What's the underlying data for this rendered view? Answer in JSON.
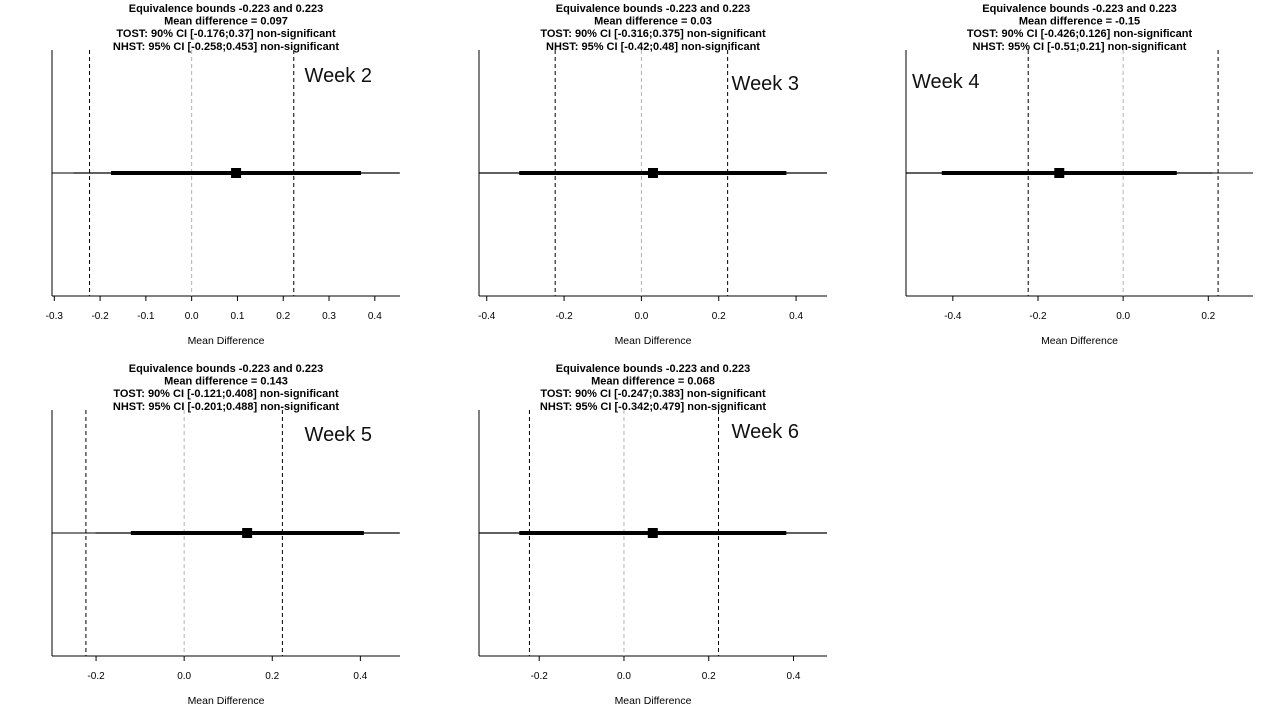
{
  "chart_data": [
    {
      "type": "scatter",
      "subtype": "forest-equivalence-test",
      "title_lines": [
        "Equivalence bounds -0.223 and 0.223",
        "Mean difference = 0.097",
        "TOST: 90% CI [-0.176;0.37] non-significant",
        "NHST: 95% CI [-0.258;0.453] non-significant"
      ],
      "panel_label": "Week 2",
      "xlabel": "Mean Difference",
      "ticks": [
        -0.3,
        -0.2,
        -0.1,
        0.0,
        0.1,
        0.2,
        0.3,
        0.4
      ],
      "tick_labels": [
        "-0.3",
        "-0.2",
        "-0.1",
        "0.0",
        "0.1",
        "0.2",
        "0.3",
        "0.4"
      ],
      "xlim": [
        -0.305,
        0.455
      ],
      "mean_difference": 0.097,
      "ci90": [
        -0.176,
        0.37
      ],
      "ci95": [
        -0.258,
        0.453
      ],
      "equivalence_bounds": [
        -0.223,
        0.223
      ],
      "label_position": "top-right"
    },
    {
      "type": "scatter",
      "subtype": "forest-equivalence-test",
      "title_lines": [
        "Equivalence bounds -0.223 and 0.223",
        "Mean difference = 0.03",
        "TOST: 90% CI [-0.316;0.375] non-significant",
        "NHST: 95% CI [-0.42;0.48] non-significant"
      ],
      "panel_label": "Week 3",
      "xlabel": "Mean Difference",
      "ticks": [
        -0.4,
        -0.2,
        0.0,
        0.2,
        0.4
      ],
      "tick_labels": [
        "-0.4",
        "-0.2",
        "0.0",
        "0.2",
        "0.4"
      ],
      "xlim": [
        -0.42,
        0.48
      ],
      "mean_difference": 0.03,
      "ci90": [
        -0.316,
        0.375
      ],
      "ci95": [
        -0.42,
        0.48
      ],
      "equivalence_bounds": [
        -0.223,
        0.223
      ],
      "label_position": "top-right"
    },
    {
      "type": "scatter",
      "subtype": "forest-equivalence-test",
      "title_lines": [
        "Equivalence bounds -0.223 and 0.223",
        "Mean difference = -0.15",
        "TOST: 90% CI [-0.426;0.126] non-significant",
        "NHST: 95% CI [-0.51;0.21] non-significant"
      ],
      "panel_label": "Week 4",
      "xlabel": "Mean Difference",
      "ticks": [
        -0.4,
        -0.2,
        0.0,
        0.2
      ],
      "tick_labels": [
        "-0.4",
        "-0.2",
        "0.0",
        "0.2"
      ],
      "xlim": [
        -0.51,
        0.305
      ],
      "mean_difference": -0.15,
      "ci90": [
        -0.426,
        0.126
      ],
      "ci95": [
        -0.51,
        0.21
      ],
      "equivalence_bounds": [
        -0.223,
        0.223
      ],
      "label_position": "top-left"
    },
    {
      "type": "scatter",
      "subtype": "forest-equivalence-test",
      "title_lines": [
        "Equivalence bounds -0.223 and 0.223",
        "Mean difference = 0.143",
        "TOST: 90% CI [-0.121;0.408] non-significant",
        "NHST: 95% CI [-0.201;0.488] non-significant"
      ],
      "panel_label": "Week 5",
      "xlabel": "Mean Difference",
      "ticks": [
        -0.2,
        0.0,
        0.2,
        0.4
      ],
      "tick_labels": [
        "-0.2",
        "0.0",
        "0.2",
        "0.4"
      ],
      "xlim": [
        -0.3,
        0.49
      ],
      "mean_difference": 0.143,
      "ci90": [
        -0.121,
        0.408
      ],
      "ci95": [
        -0.201,
        0.488
      ],
      "equivalence_bounds": [
        -0.223,
        0.223
      ],
      "label_position": "top-right"
    },
    {
      "type": "scatter",
      "subtype": "forest-equivalence-test",
      "title_lines": [
        "Equivalence bounds -0.223 and 0.223",
        "Mean difference = 0.068",
        "TOST: 90% CI [-0.247;0.383] non-significant",
        "NHST: 95% CI [-0.342;0.479] non-significant"
      ],
      "panel_label": "Week 6",
      "xlabel": "Mean Difference",
      "ticks": [
        -0.2,
        0.0,
        0.2,
        0.4
      ],
      "tick_labels": [
        "-0.2",
        "0.0",
        "0.2",
        "0.4"
      ],
      "xlim": [
        -0.342,
        0.479
      ],
      "mean_difference": 0.068,
      "ci90": [
        -0.247,
        0.383
      ],
      "ci95": [
        -0.342,
        0.479
      ],
      "equivalence_bounds": [
        -0.223,
        0.223
      ],
      "label_position": "top-right"
    }
  ],
  "colors": {
    "line": "#000000",
    "zero_line": "#b3b3b3",
    "background": "#ffffff"
  }
}
